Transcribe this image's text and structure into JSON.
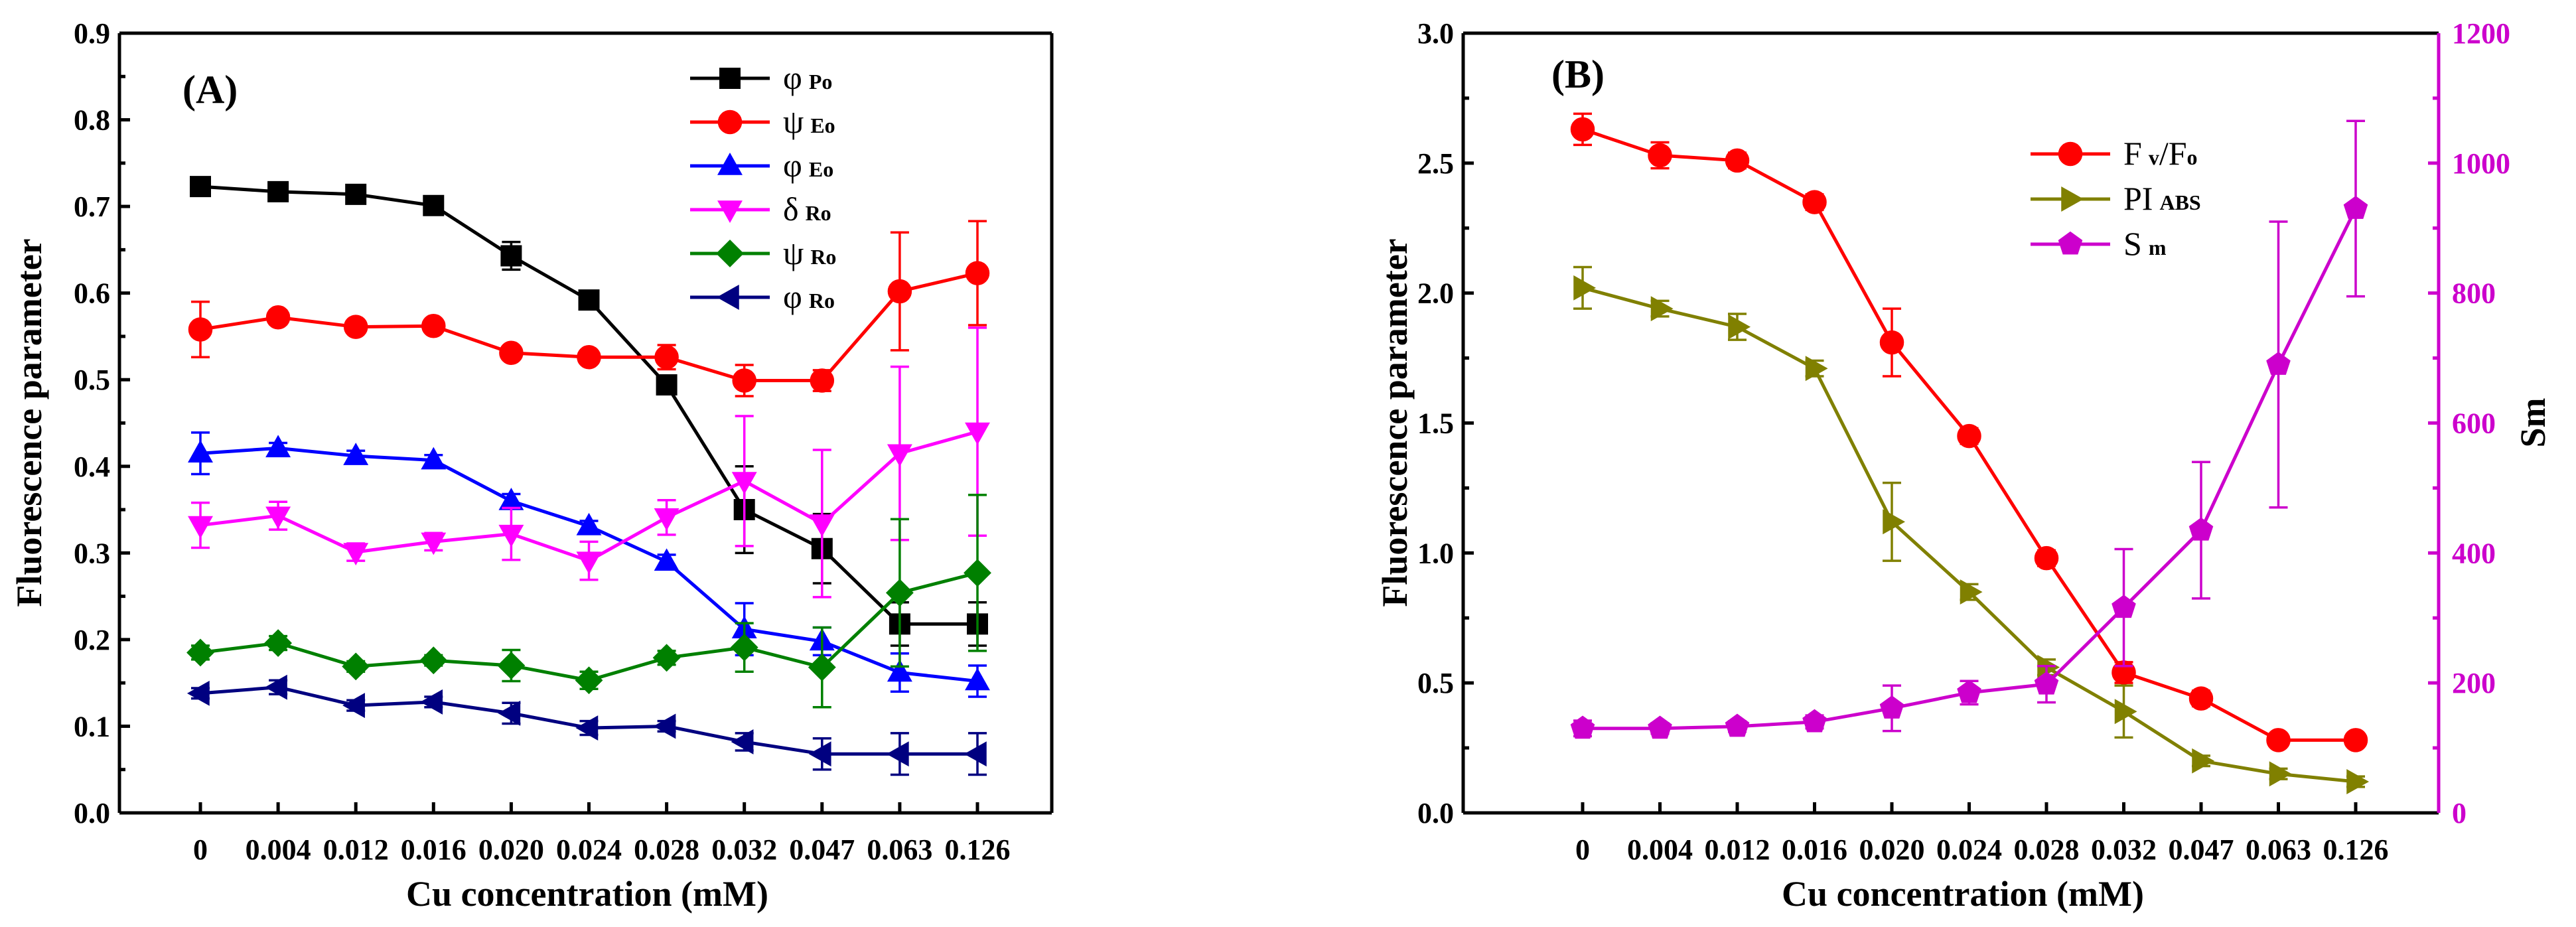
{
  "chart_data": [
    {
      "panel": "(A)",
      "type": "line",
      "ylabel": "Fluorescence parameter",
      "xlabel": "Cu concentration (mM)",
      "categories": [
        "0",
        "0.004",
        "0.012",
        "0.016",
        "0.020",
        "0.024",
        "0.028",
        "0.032",
        "0.047",
        "0.063",
        "0.126"
      ],
      "ylim": [
        0,
        0.9
      ],
      "yticks": [
        "0.0",
        "0.1",
        "0.2",
        "0.3",
        "0.4",
        "0.5",
        "0.6",
        "0.7",
        "0.8",
        "0.9"
      ],
      "legend_position": "top-right",
      "series": [
        {
          "name": "φ",
          "sub": "Po",
          "color": "#000000",
          "marker": "square",
          "values": [
            0.723,
            0.717,
            0.714,
            0.701,
            0.643,
            0.592,
            0.494,
            0.35,
            0.305,
            0.218,
            0.218
          ],
          "errors": [
            0.008,
            0.006,
            0.006,
            0.006,
            0.016,
            0.008,
            0.01,
            0.05,
            0.04,
            0.025,
            0.025
          ]
        },
        {
          "name": "ψ",
          "sub": "Eo",
          "color": "#ff0000",
          "marker": "circle",
          "values": [
            0.558,
            0.572,
            0.561,
            0.562,
            0.531,
            0.526,
            0.526,
            0.499,
            0.499,
            0.602,
            0.623
          ],
          "errors": [
            0.032,
            0.008,
            0.006,
            0.006,
            0.006,
            0.006,
            0.014,
            0.018,
            0.012,
            0.068,
            0.06
          ]
        },
        {
          "name": "φ",
          "sub": "Eo",
          "color": "#0000ff",
          "marker": "triangle-up",
          "values": [
            0.415,
            0.421,
            0.412,
            0.407,
            0.36,
            0.331,
            0.29,
            0.212,
            0.198,
            0.162,
            0.152
          ],
          "errors": [
            0.024,
            0.006,
            0.006,
            0.006,
            0.008,
            0.006,
            0.008,
            0.03,
            0.016,
            0.022,
            0.018
          ]
        },
        {
          "name": "δ",
          "sub": "Ro",
          "color": "#ff00ff",
          "marker": "triangle-down",
          "values": [
            0.332,
            0.343,
            0.301,
            0.313,
            0.322,
            0.291,
            0.341,
            0.383,
            0.334,
            0.415,
            0.44
          ],
          "errors": [
            0.026,
            0.016,
            0.01,
            0.01,
            0.03,
            0.022,
            0.02,
            0.075,
            0.085,
            0.1,
            0.12
          ]
        },
        {
          "name": "ψ",
          "sub": "Ro",
          "color": "#008000",
          "marker": "diamond",
          "values": [
            0.185,
            0.196,
            0.169,
            0.176,
            0.17,
            0.153,
            0.179,
            0.191,
            0.168,
            0.254,
            0.277
          ],
          "errors": [
            0.008,
            0.008,
            0.006,
            0.006,
            0.018,
            0.01,
            0.008,
            0.028,
            0.046,
            0.085,
            0.09
          ]
        },
        {
          "name": "φ",
          "sub": "Ro",
          "color": "#000080",
          "marker": "triangle-left",
          "values": [
            0.138,
            0.145,
            0.124,
            0.128,
            0.115,
            0.098,
            0.1,
            0.082,
            0.068,
            0.068,
            0.068
          ],
          "errors": [
            0.006,
            0.008,
            0.006,
            0.006,
            0.012,
            0.008,
            0.006,
            0.01,
            0.018,
            0.024,
            0.024
          ]
        }
      ]
    },
    {
      "panel": "(B)",
      "type": "line",
      "ylabel": "Fluorescence parameter",
      "y2label": "Sm",
      "xlabel": "Cu concentration (mM)",
      "categories": [
        "0",
        "0.004",
        "0.012",
        "0.016",
        "0.020",
        "0.024",
        "0.028",
        "0.032",
        "0.047",
        "0.063",
        "0.126"
      ],
      "ylim": [
        0,
        3.0
      ],
      "yticks": [
        "0.0",
        "0.5",
        "1.0",
        "1.5",
        "2.0",
        "2.5",
        "3.0"
      ],
      "y2lim": [
        0,
        1200
      ],
      "y2ticks": [
        "0",
        "200",
        "400",
        "600",
        "800",
        "1000",
        "1200"
      ],
      "legend_position": "top-right",
      "series": [
        {
          "name": "F",
          "sub": "v",
          "name2": "/F",
          "sub2": "o",
          "color": "#ff0000",
          "marker": "circle",
          "axis": "left",
          "values": [
            2.63,
            2.53,
            2.51,
            2.35,
            1.81,
            1.45,
            0.98,
            0.54,
            0.44,
            0.28,
            0.28
          ],
          "errors": [
            0.06,
            0.05,
            0.03,
            0.03,
            0.13,
            0.03,
            0.03,
            0.04,
            0.03,
            0.02,
            0.02
          ]
        },
        {
          "name": "PI",
          "sub": "ABS",
          "color": "#808000",
          "marker": "triangle-right",
          "axis": "left",
          "values": [
            2.02,
            1.94,
            1.87,
            1.71,
            1.12,
            0.85,
            0.56,
            0.39,
            0.2,
            0.15,
            0.12
          ],
          "errors": [
            0.08,
            0.03,
            0.05,
            0.03,
            0.15,
            0.03,
            0.03,
            0.1,
            0.02,
            0.02,
            0.02
          ]
        },
        {
          "name": "S",
          "sub": "m",
          "color": "#cc00cc",
          "marker": "pentagon",
          "axis": "right",
          "values": [
            130,
            130,
            133,
            140,
            161,
            185,
            198,
            316,
            435,
            690,
            930
          ],
          "errors": [
            12,
            8,
            8,
            10,
            35,
            18,
            28,
            90,
            105,
            220,
            135
          ]
        }
      ]
    }
  ]
}
